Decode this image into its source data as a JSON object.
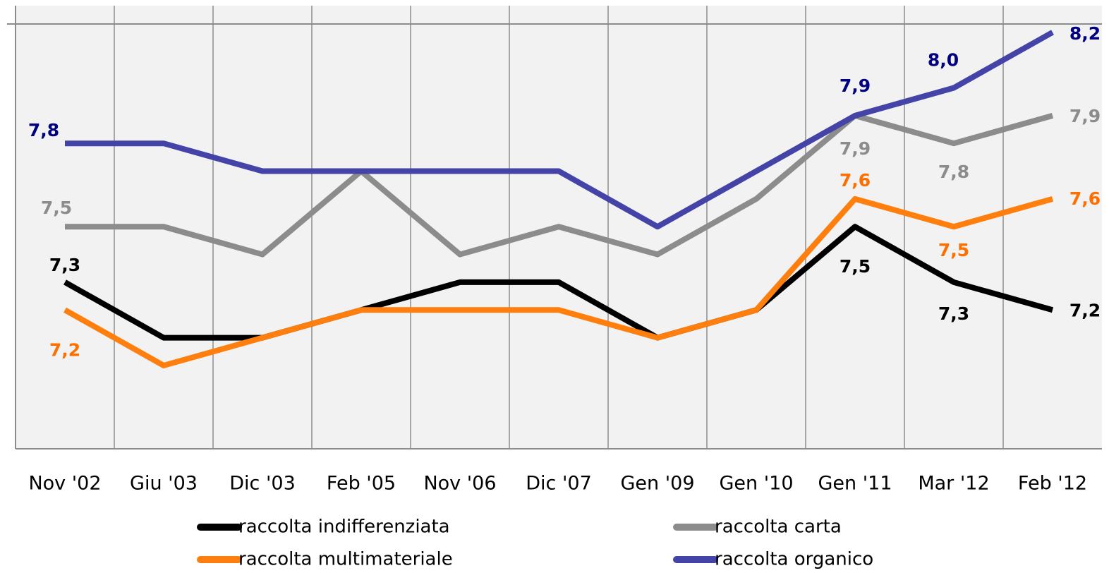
{
  "chart_data": {
    "type": "line",
    "categories": [
      "Nov '02",
      "Giu '03",
      "Dic '03",
      "Feb '05",
      "Nov '06",
      "Dic '07",
      "Gen '09",
      "Gen '10",
      "Gen '11",
      "Mar '12",
      "Feb '12"
    ],
    "ylim": [
      6.7,
      8.23
    ],
    "series": [
      {
        "name": "raccolta indifferenziata",
        "color": "#000000",
        "label_color": "#000000",
        "values": [
          7.3,
          7.1,
          7.1,
          7.2,
          7.3,
          7.3,
          7.1,
          7.2,
          7.5,
          7.3,
          7.2
        ],
        "value_labels": [
          "7,3",
          null,
          null,
          null,
          null,
          null,
          null,
          null,
          "7,5",
          "7,3",
          "7,2"
        ]
      },
      {
        "name": "raccolta multimateriale",
        "color": "#ff7f0e",
        "label_color": "#ff6f00",
        "values": [
          7.2,
          7.0,
          7.1,
          7.2,
          7.2,
          7.2,
          7.1,
          7.2,
          7.6,
          7.5,
          7.6
        ],
        "value_labels": [
          "7,2",
          null,
          null,
          null,
          null,
          null,
          null,
          null,
          "7,6",
          "7,5",
          "7,6"
        ]
      },
      {
        "name": "raccolta carta",
        "color": "#8c8c8c",
        "label_color": "#8c8c8c",
        "values": [
          7.5,
          7.5,
          7.4,
          7.7,
          7.4,
          7.5,
          7.4,
          7.6,
          7.9,
          7.8,
          7.9
        ],
        "value_labels": [
          "7,5",
          null,
          null,
          null,
          null,
          null,
          null,
          null,
          "7,9",
          "7,8",
          "7,9"
        ]
      },
      {
        "name": "raccolta organico",
        "color": "#4343a8",
        "label_color": "#000080",
        "values": [
          7.8,
          7.8,
          7.7,
          7.7,
          7.7,
          7.7,
          7.5,
          7.7,
          7.9,
          8.0,
          8.2
        ],
        "value_labels": [
          "7,8",
          null,
          null,
          null,
          null,
          null,
          null,
          null,
          "7,9",
          "8,0",
          "8,2"
        ]
      }
    ]
  }
}
